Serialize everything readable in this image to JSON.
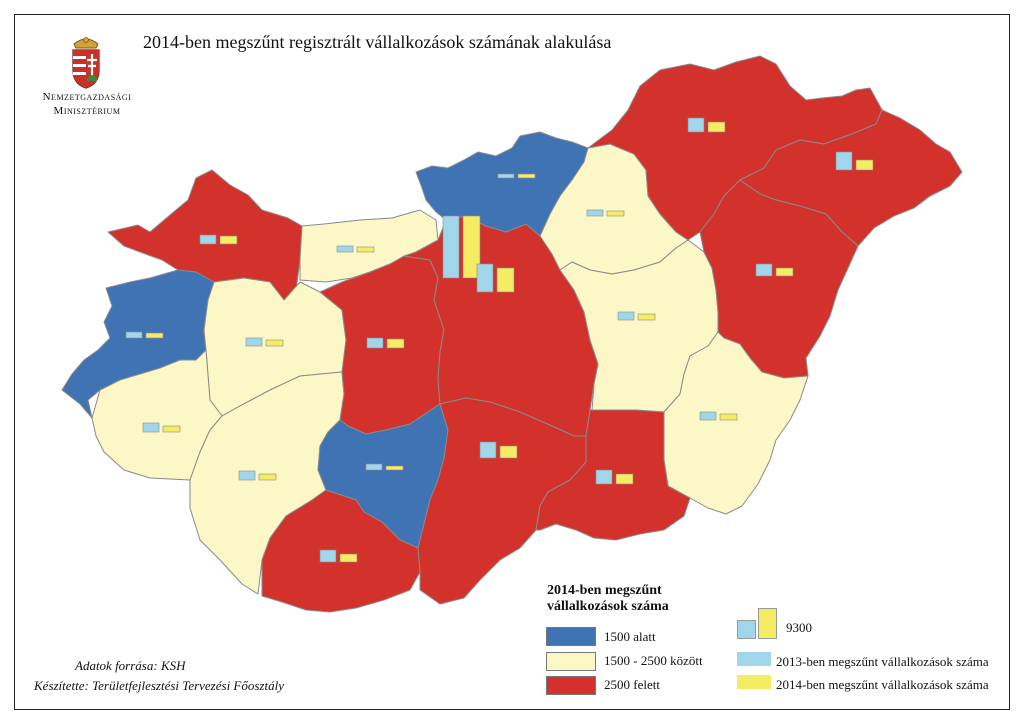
{
  "title": "2014-ben megszűnt regisztrált vállalkozások számának alakulása",
  "ministry": {
    "line1": "Nemzetgazdasági",
    "line2": "Minisztérium"
  },
  "colors": {
    "below_1500": "#3f73b4",
    "between": "#fbf7c6",
    "above_2500": "#d3322c",
    "bar_2013": "#9fd6ea",
    "bar_2014": "#f4ec62",
    "border": "#8a8a8a"
  },
  "legend": {
    "title_line1": "2014-ben megszűnt",
    "title_line2": "vállalkozások száma",
    "classes": [
      {
        "label": "1500 alatt",
        "color_key": "below_1500"
      },
      {
        "label": "1500 - 2500 között",
        "color_key": "between"
      },
      {
        "label": "2500 felett",
        "color_key": "above_2500"
      }
    ],
    "scale_value": "9300",
    "bars": [
      {
        "label": "2013-ben megszűnt vállalkozások száma",
        "color_key": "bar_2013"
      },
      {
        "label": "2014-ben megszűnt vállalkozások száma",
        "color_key": "bar_2014"
      }
    ]
  },
  "source": "Adatok forrása: KSH",
  "author": "Készítette: Területfejlesztési Tervezési Főosztály"
}
